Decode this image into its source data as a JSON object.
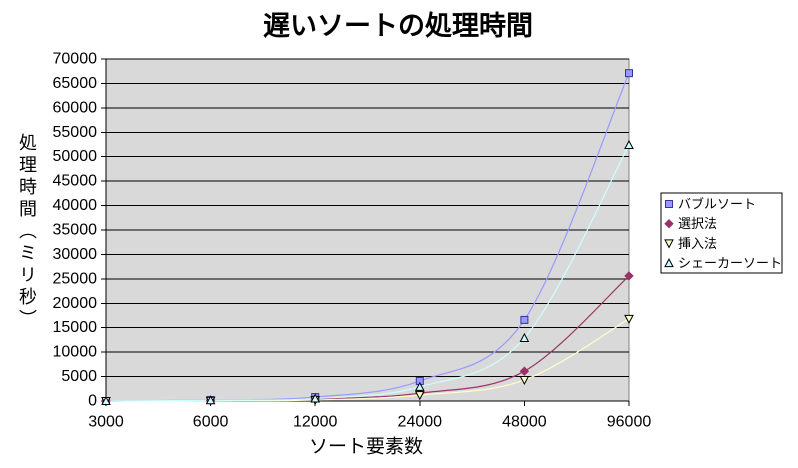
{
  "chart_data": {
    "type": "line",
    "title": "遅いソートの処理時間",
    "xlabel": "ソート要素数",
    "ylabel": "処理時間（ミリ秒）",
    "categories": [
      "3000",
      "6000",
      "12000",
      "24000",
      "48000",
      "96000"
    ],
    "ylim": [
      0,
      70000
    ],
    "yticks": [
      0,
      5000,
      10000,
      15000,
      20000,
      25000,
      30000,
      35000,
      40000,
      45000,
      50000,
      55000,
      60000,
      65000,
      70000
    ],
    "grid": true,
    "smoothed": true,
    "legend_position": "right",
    "plot_background": "#d9d9d9",
    "series": [
      {
        "name": "バブルソート",
        "values": [
          0,
          200,
          800,
          4100,
          16600,
          67100
        ],
        "line_color": "#9999ff",
        "marker": "square",
        "marker_fill": "#9999ff",
        "marker_edge": "#333399"
      },
      {
        "name": "選択法",
        "values": [
          0,
          100,
          400,
          1600,
          6100,
          25600
        ],
        "line_color": "#993366",
        "marker": "diamond",
        "marker_fill": "#993366",
        "marker_edge": "#993366"
      },
      {
        "name": "挿入法",
        "values": [
          0,
          50,
          200,
          1200,
          4300,
          16800
        ],
        "line_color": "#ffffcc",
        "marker": "triangle-down",
        "marker_fill": "#ffffcc",
        "marker_edge": "#000000"
      },
      {
        "name": "シェーカーソート",
        "values": [
          0,
          150,
          500,
          2900,
          12900,
          52400
        ],
        "line_color": "#ccffff",
        "marker": "triangle-up",
        "marker_fill": "#ccffff",
        "marker_edge": "#000000"
      }
    ]
  }
}
